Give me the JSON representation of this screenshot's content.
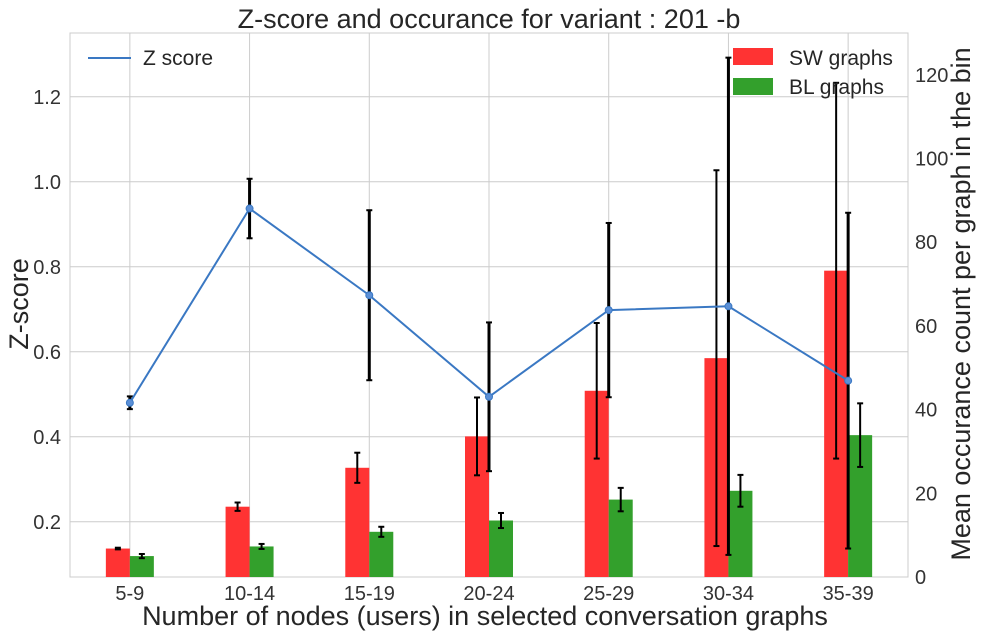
{
  "chart_data": {
    "type": "bar",
    "title": "Z-score and occurance for variant : 201 -b",
    "xlabel": "Number of nodes (users) in selected conversation graphs",
    "ylabel_left": "Z-score",
    "ylabel_right": "Mean occurance count per graph in the bin",
    "categories": [
      "5-9",
      "10-14",
      "15-19",
      "20-24",
      "25-29",
      "30-34",
      "35-39"
    ],
    "ylim_left": [
      0.07,
      1.35
    ],
    "ylim_right": [
      0,
      130
    ],
    "yticks_left": [
      "0.2",
      "0.4",
      "0.6",
      "0.8",
      "1.0",
      "1.2"
    ],
    "yticks_left_values": [
      0.2,
      0.4,
      0.6,
      0.8,
      1.0,
      1.2
    ],
    "yticks_right": [
      "0",
      "20",
      "40",
      "60",
      "80",
      "100",
      "120"
    ],
    "yticks_right_values": [
      0,
      20,
      40,
      60,
      80,
      100,
      120
    ],
    "grid": true,
    "line_series": {
      "name": "Z score",
      "color": "#3a78c3",
      "values": [
        0.48,
        0.937,
        0.733,
        0.494,
        0.698,
        0.707,
        0.532
      ],
      "errors": [
        0.015,
        0.07,
        0.2,
        0.175,
        0.205,
        0.585,
        0.395
      ]
    },
    "bar_series": [
      {
        "name": "SW graphs",
        "color": "#ff3333",
        "values": [
          6.8,
          16.8,
          26.1,
          33.6,
          44.5,
          52.3,
          73.2
        ],
        "errors": [
          0.2,
          1.0,
          3.6,
          9.3,
          16.2,
          44.9,
          44.9
        ]
      },
      {
        "name": "BL graphs",
        "color": "#33a02c",
        "values": [
          5.0,
          7.3,
          10.8,
          13.5,
          18.5,
          20.6,
          33.9
        ],
        "errors": [
          0.5,
          0.6,
          1.2,
          1.8,
          2.8,
          3.8,
          7.6
        ]
      }
    ],
    "legend": {
      "left": "top-left",
      "right": "top-right"
    }
  }
}
